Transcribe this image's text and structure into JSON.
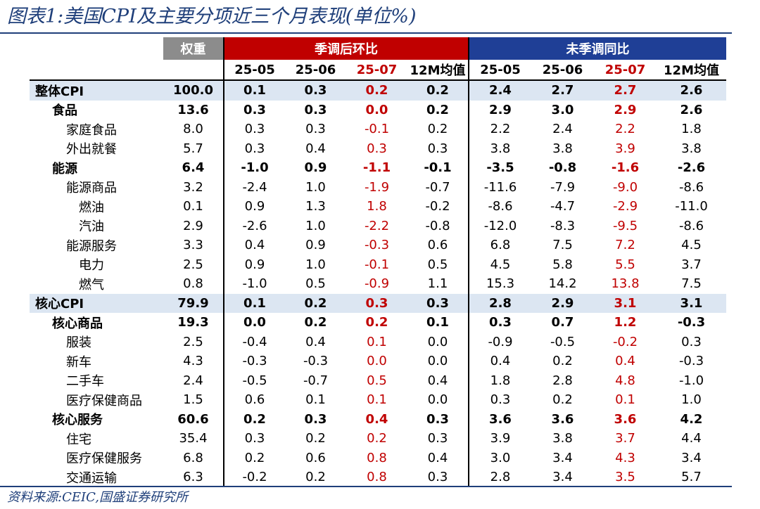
{
  "title": "图表1:美国CPI及主要分项近三个月表现(单位%)",
  "source": "资料来源:CEIC,国盛证券研究所",
  "header": {
    "weight": "权重",
    "group_mom": "季调后环比",
    "group_yoy": "未季调同比",
    "periods": [
      "25-05",
      "25-06",
      "25-07",
      "12M均值",
      "25-05",
      "25-06",
      "25-07",
      "12M均值"
    ]
  },
  "colors": {
    "accent_red": "#c00000",
    "header_blue": "#1f3f96",
    "title_blue": "#1f3f7a",
    "highlight_row": "#dce6f2",
    "weight_header": "#8c8c8c"
  },
  "rows": [
    {
      "label": "整体CPI",
      "cells": [
        "100.0",
        "0.1",
        "0.3",
        "0.2",
        "0.2",
        "2.4",
        "2.7",
        "2.7",
        "2.6"
      ]
    },
    {
      "label": "食品",
      "cells": [
        "13.6",
        "0.3",
        "0.3",
        "0.0",
        "0.2",
        "2.9",
        "3.0",
        "2.9",
        "2.6"
      ]
    },
    {
      "label": "家庭食品",
      "cells": [
        "8.0",
        "0.3",
        "0.3",
        "-0.1",
        "0.2",
        "2.2",
        "2.4",
        "2.2",
        "1.8"
      ]
    },
    {
      "label": "外出就餐",
      "cells": [
        "5.7",
        "0.3",
        "0.4",
        "0.3",
        "0.3",
        "3.8",
        "3.8",
        "3.9",
        "3.8"
      ]
    },
    {
      "label": "能源",
      "cells": [
        "6.4",
        "-1.0",
        "0.9",
        "-1.1",
        "-0.1",
        "-3.5",
        "-0.8",
        "-1.6",
        "-2.6"
      ]
    },
    {
      "label": "能源商品",
      "cells": [
        "3.2",
        "-2.4",
        "1.0",
        "-1.9",
        "-0.7",
        "-11.6",
        "-7.9",
        "-9.0",
        "-8.6"
      ]
    },
    {
      "label": "燃油",
      "cells": [
        "0.1",
        "0.9",
        "1.3",
        "1.8",
        "-0.2",
        "-8.6",
        "-4.7",
        "-2.9",
        "-11.0"
      ]
    },
    {
      "label": "汽油",
      "cells": [
        "2.9",
        "-2.6",
        "1.0",
        "-2.2",
        "-0.8",
        "-12.0",
        "-8.3",
        "-9.5",
        "-8.6"
      ]
    },
    {
      "label": "能源服务",
      "cells": [
        "3.3",
        "0.4",
        "0.9",
        "-0.3",
        "0.6",
        "6.8",
        "7.5",
        "7.2",
        "4.5"
      ]
    },
    {
      "label": "电力",
      "cells": [
        "2.5",
        "0.9",
        "1.0",
        "-0.1",
        "0.5",
        "4.5",
        "5.8",
        "5.5",
        "3.7"
      ]
    },
    {
      "label": "燃气",
      "cells": [
        "0.8",
        "-1.0",
        "0.5",
        "-0.9",
        "1.1",
        "15.3",
        "14.2",
        "13.8",
        "7.5"
      ]
    },
    {
      "label": "核心CPI",
      "cells": [
        "79.9",
        "0.1",
        "0.2",
        "0.3",
        "0.3",
        "2.8",
        "2.9",
        "3.1",
        "3.1"
      ]
    },
    {
      "label": "核心商品",
      "cells": [
        "19.3",
        "0.0",
        "0.2",
        "0.2",
        "0.1",
        "0.3",
        "0.7",
        "1.2",
        "-0.3"
      ]
    },
    {
      "label": "服装",
      "cells": [
        "2.5",
        "-0.4",
        "0.4",
        "0.1",
        "0.0",
        "-0.9",
        "-0.5",
        "-0.2",
        "0.3"
      ]
    },
    {
      "label": "新车",
      "cells": [
        "4.3",
        "-0.3",
        "-0.3",
        "0.0",
        "0.0",
        "0.4",
        "0.2",
        "0.4",
        "-0.3"
      ]
    },
    {
      "label": "二手车",
      "cells": [
        "2.4",
        "-0.5",
        "-0.7",
        "0.5",
        "0.4",
        "1.8",
        "2.8",
        "4.8",
        "-1.0"
      ]
    },
    {
      "label": "医疗保健商品",
      "cells": [
        "1.5",
        "0.6",
        "0.1",
        "0.1",
        "0.0",
        "0.3",
        "0.2",
        "0.1",
        "1.0"
      ]
    },
    {
      "label": "核心服务",
      "cells": [
        "60.6",
        "0.2",
        "0.3",
        "0.4",
        "0.3",
        "3.6",
        "3.6",
        "3.6",
        "4.2"
      ]
    },
    {
      "label": "住宅",
      "cells": [
        "35.4",
        "0.3",
        "0.2",
        "0.2",
        "0.3",
        "3.9",
        "3.8",
        "3.7",
        "4.4"
      ]
    },
    {
      "label": "医疗保健服务",
      "cells": [
        "6.8",
        "0.2",
        "0.6",
        "0.8",
        "0.4",
        "3.0",
        "3.4",
        "4.3",
        "3.4"
      ]
    },
    {
      "label": "交通运输",
      "cells": [
        "6.3",
        "-0.2",
        "0.2",
        "0.8",
        "0.3",
        "2.8",
        "3.4",
        "3.5",
        "5.7"
      ]
    }
  ]
}
